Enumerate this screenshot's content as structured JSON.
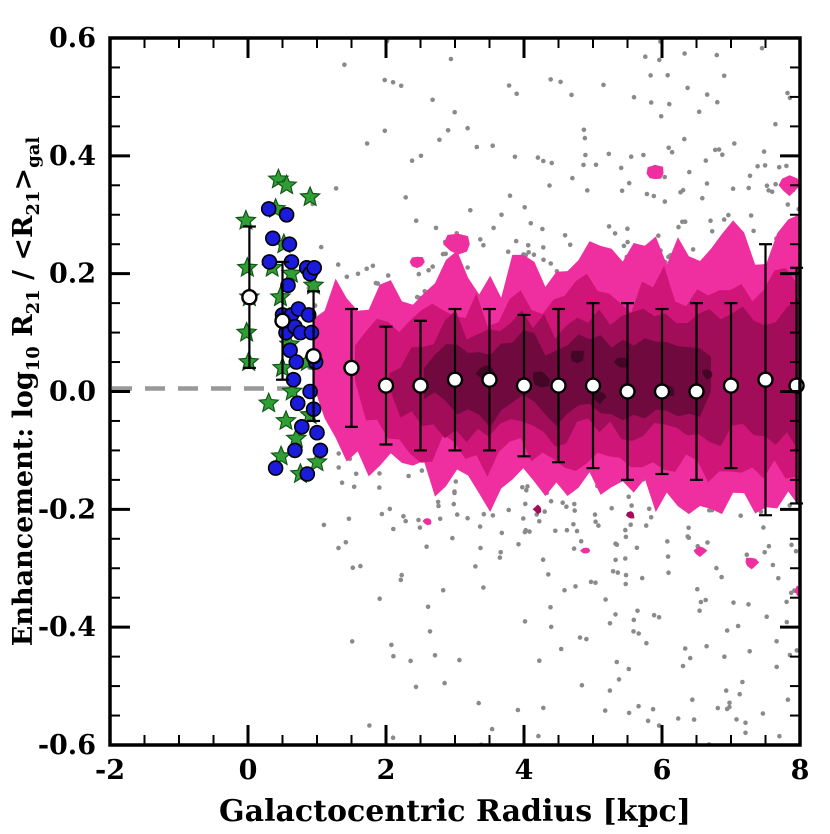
{
  "figure": {
    "background": "#ffffff"
  },
  "chart_data": {
    "type": "scatter",
    "title": "",
    "xlabel": "Galactocentric Radius [kpc]",
    "ylabel_segments": [
      {
        "t": "Enhancement: log",
        "sub": false
      },
      {
        "t": "10",
        "sub": true
      },
      {
        "t": " R",
        "sub": false
      },
      {
        "t": "21",
        "sub": true
      },
      {
        "t": " / <R",
        "sub": false
      },
      {
        "t": "21",
        "sub": true
      },
      {
        "t": ">",
        "sub": false
      },
      {
        "t": "gal",
        "sub": true
      }
    ],
    "xlim": [
      -2,
      8
    ],
    "ylim": [
      -0.6,
      0.6
    ],
    "xticks": {
      "values": [
        -2,
        0,
        2,
        4,
        6,
        8
      ],
      "labels": [
        "-2",
        "0",
        "2",
        "4",
        "6",
        "8"
      ],
      "minor_step": 0.5
    },
    "yticks": {
      "values": [
        -0.6,
        -0.4,
        -0.2,
        0.0,
        0.2,
        0.4,
        0.6
      ],
      "labels": [
        "-0.6",
        "-0.4",
        "-0.2",
        "0.0",
        "0.2",
        "0.4",
        "0.6"
      ],
      "minor_step": 0.05
    },
    "grid": false,
    "legend": null,
    "reference_line": {
      "y": 0.005,
      "color": "#999999",
      "dash": [
        20,
        13
      ],
      "width": 4.5
    },
    "series": [
      {
        "name": "binned-median-enhancement",
        "marker": "white-circle-errorbar",
        "x": [
          0.02,
          0.5,
          0.95,
          1.5,
          2.0,
          2.5,
          3.0,
          3.5,
          4.0,
          4.5,
          5.0,
          5.5,
          6.0,
          6.5,
          7.0,
          7.5,
          7.95
        ],
        "y": [
          0.16,
          0.12,
          0.06,
          0.04,
          0.01,
          0.01,
          0.02,
          0.02,
          0.01,
          0.01,
          0.01,
          0.0,
          0.0,
          0.0,
          0.01,
          0.02,
          0.01
        ],
        "yerr": [
          0.12,
          0.1,
          0.11,
          0.1,
          0.1,
          0.11,
          0.12,
          0.12,
          0.12,
          0.13,
          0.14,
          0.15,
          0.14,
          0.15,
          0.14,
          0.23,
          0.2
        ]
      },
      {
        "name": "green-star-sample",
        "marker": "green-star",
        "points": [
          [
            -0.03,
            0.29
          ],
          [
            -0.01,
            0.21
          ],
          [
            0.02,
            0.16
          ],
          [
            -0.02,
            0.1
          ],
          [
            0.01,
            0.05
          ],
          [
            0.44,
            0.36
          ],
          [
            0.56,
            0.35
          ],
          [
            0.4,
            0.31
          ],
          [
            0.52,
            0.25
          ],
          [
            0.63,
            0.2
          ],
          [
            0.47,
            0.16
          ],
          [
            0.56,
            0.12
          ],
          [
            0.6,
            0.08
          ],
          [
            0.5,
            0.04
          ],
          [
            0.64,
            0.0
          ],
          [
            0.55,
            -0.05
          ],
          [
            0.7,
            -0.08
          ],
          [
            0.48,
            -0.11
          ],
          [
            0.76,
            -0.14
          ],
          [
            0.9,
            0.33
          ],
          [
            0.95,
            0.18
          ],
          [
            0.86,
            0.05
          ],
          [
            0.9,
            -0.04
          ],
          [
            1.0,
            -0.12
          ],
          [
            0.35,
            0.21
          ],
          [
            0.3,
            -0.02
          ]
        ]
      },
      {
        "name": "blue-circle-sample",
        "marker": "blue-circle",
        "points": [
          [
            0.3,
            0.31
          ],
          [
            0.36,
            0.26
          ],
          [
            0.31,
            0.22
          ],
          [
            0.56,
            0.3
          ],
          [
            0.6,
            0.25
          ],
          [
            0.63,
            0.22
          ],
          [
            0.58,
            0.18
          ],
          [
            0.5,
            0.13
          ],
          [
            0.55,
            0.1
          ],
          [
            0.61,
            0.07
          ],
          [
            0.63,
            0.13
          ],
          [
            0.68,
            0.11
          ],
          [
            0.73,
            0.14
          ],
          [
            0.76,
            0.1
          ],
          [
            0.7,
            0.05
          ],
          [
            0.66,
            0.02
          ],
          [
            0.72,
            -0.02
          ],
          [
            0.78,
            -0.06
          ],
          [
            0.68,
            -0.1
          ],
          [
            0.85,
            0.21
          ],
          [
            0.9,
            0.2
          ],
          [
            0.96,
            0.21
          ],
          [
            0.88,
            0.13
          ],
          [
            0.92,
            0.1
          ],
          [
            0.98,
            0.05
          ],
          [
            0.9,
            0.0
          ],
          [
            0.95,
            -0.03
          ],
          [
            1.0,
            -0.07
          ],
          [
            1.05,
            -0.1
          ],
          [
            0.86,
            -0.14
          ],
          [
            0.4,
            -0.13
          ]
        ]
      }
    ],
    "background_scatter": {
      "name": "individual-pixels-gray",
      "n": 900,
      "seed": 7,
      "x_min": 0.85,
      "x_max": 8.3,
      "x_power": 0.75,
      "sigma_base": 0.1,
      "sigma_slope": 0.028,
      "uniform_frac": 0.18,
      "uniform_span": 0.63,
      "color": "#8a8a8a",
      "dot_radius": 2.3
    },
    "contours": {
      "seed": 3,
      "noise": 0.035,
      "envelope": {
        "x": [
          0.95,
          1.2,
          1.5,
          2.0,
          2.5,
          3.0,
          3.5,
          4.0,
          4.5,
          5.0,
          5.5,
          6.0,
          6.5,
          7.0,
          7.5,
          8.05
        ],
        "top": [
          0.17,
          0.19,
          0.15,
          0.17,
          0.16,
          0.21,
          0.18,
          0.22,
          0.2,
          0.24,
          0.22,
          0.25,
          0.22,
          0.26,
          0.24,
          0.27
        ],
        "bottom": [
          -0.02,
          -0.08,
          -0.1,
          -0.13,
          -0.14,
          -0.15,
          -0.17,
          -0.15,
          -0.18,
          -0.16,
          -0.19,
          -0.17,
          -0.2,
          -0.18,
          -0.21,
          -0.2
        ]
      },
      "levels": [
        {
          "color": "#ef2f9f",
          "xstart": 0.95,
          "xend": 8.1,
          "scale": 1.0,
          "band": true
        },
        {
          "color": "#d01578",
          "xstart": 1.55,
          "xend": 8.1,
          "scale": 0.7,
          "band": true
        },
        {
          "color": "#a10d58",
          "xstart": 2.05,
          "xend": 8.1,
          "scale": 0.48,
          "band": true
        },
        {
          "color": "#700a3e",
          "xstart": 2.55,
          "xend": 6.8,
          "scale": 0.3,
          "band": true
        },
        {
          "color": "#440627",
          "band": false
        }
      ],
      "blobs": [
        {
          "x": 2.45,
          "y": 0.22,
          "r": 0.09,
          "level": 0
        },
        {
          "x": 3.05,
          "y": 0.25,
          "r": 0.19,
          "level": 0
        },
        {
          "x": 5.9,
          "y": 0.37,
          "r": 0.13,
          "level": 0
        },
        {
          "x": 7.85,
          "y": 0.35,
          "r": 0.16,
          "level": 0
        },
        {
          "x": 7.3,
          "y": -0.29,
          "r": 0.1,
          "level": 0
        },
        {
          "x": 6.55,
          "y": -0.27,
          "r": 0.09,
          "level": 0
        },
        {
          "x": 8.05,
          "y": -0.34,
          "r": 0.12,
          "level": 0
        },
        {
          "x": 4.9,
          "y": -0.27,
          "r": 0.07,
          "level": 0
        },
        {
          "x": 2.6,
          "y": -0.22,
          "r": 0.07,
          "level": 0
        },
        {
          "x": 4.2,
          "y": -0.2,
          "r": 0.07,
          "level": 2
        },
        {
          "x": 5.55,
          "y": -0.21,
          "r": 0.06,
          "level": 2
        },
        {
          "x": 3.45,
          "y": 0.03,
          "r": 0.12,
          "level": 4
        },
        {
          "x": 4.25,
          "y": 0.02,
          "r": 0.14,
          "level": 4
        },
        {
          "x": 4.78,
          "y": 0.06,
          "r": 0.11,
          "level": 4
        },
        {
          "x": 5.1,
          "y": -0.01,
          "r": 0.1,
          "level": 4
        },
        {
          "x": 5.4,
          "y": 0.05,
          "r": 0.1,
          "level": 4
        },
        {
          "x": 6.1,
          "y": 0.0,
          "r": 0.1,
          "level": 4
        },
        {
          "x": 6.65,
          "y": 0.03,
          "r": 0.08,
          "level": 4
        }
      ]
    },
    "marker_styles": {
      "green_star": {
        "fill": "#2f9e35",
        "stroke": "#14551a",
        "size": 10
      },
      "blue_circle": {
        "fill": "#1b1bdc",
        "stroke": "#000000",
        "radius": 7
      },
      "white_circle": {
        "fill": "#ffffff",
        "stroke": "#000000",
        "radius": 7
      },
      "gray_dot": {
        "fill": "#8a8a8a",
        "radius": 2.3
      },
      "errorbar": {
        "stroke": "#000000",
        "width": 2.2,
        "cap_halfwidth": 6.5
      }
    }
  }
}
